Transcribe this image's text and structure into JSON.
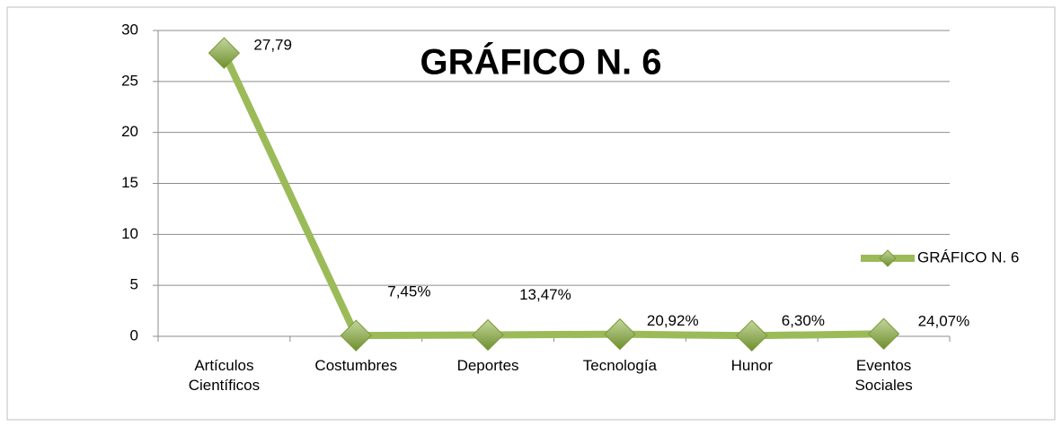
{
  "chart_data": {
    "type": "line",
    "title": "GRÁFICO N. 6",
    "categories": [
      "Artículos Científicos",
      "Costumbres",
      "Deportes",
      "Tecnología",
      "Hunor",
      "Eventos Sociales"
    ],
    "series": [
      {
        "name": "GRÁFICO N. 6",
        "color": "#9bbb59",
        "values": [
          27.79,
          0.0745,
          0.1347,
          0.2092,
          0.063,
          0.2407
        ],
        "value_labels": [
          "27,79",
          "7,45%",
          "13,47%",
          "20,92%",
          "6,30%",
          "24,07%"
        ]
      }
    ],
    "ylim": [
      0,
      30
    ],
    "yticks": [
      0,
      5,
      10,
      15,
      20,
      25,
      30
    ],
    "grid": true,
    "legend": "right"
  }
}
